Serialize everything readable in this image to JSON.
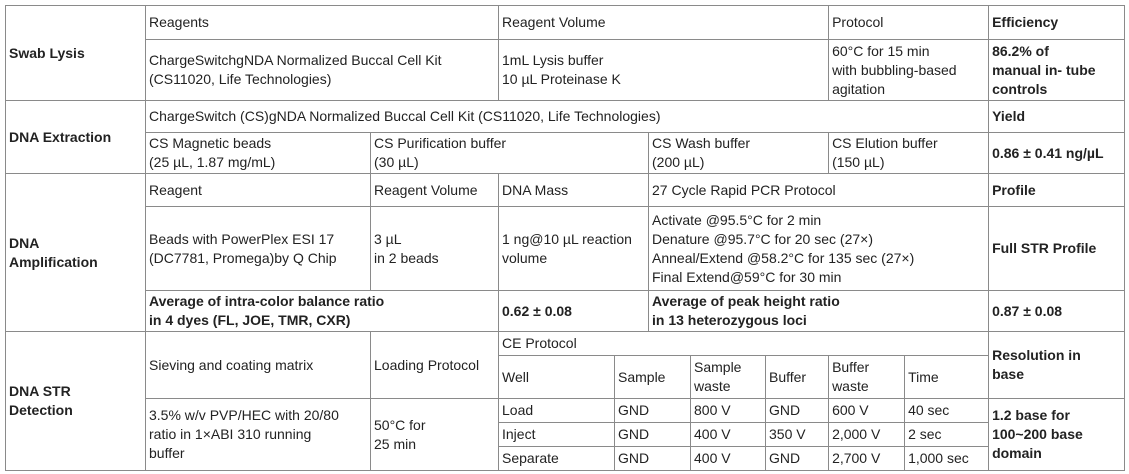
{
  "table": {
    "rows": [
      [
        "Swab Lysis",
        "Reagents",
        "Reagent Volume",
        "Protocol",
        "Efficiency"
      ],
      [
        "ChargeSwitchgNDA Normalized Buccal Cell Kit\n(CS11020, Life Technologies)",
        "1mL Lysis buffer\n10 µL Proteinase K",
        "60°C for 15 min\nwith bubbling-based\nagitation",
        "86.2% of\nmanual in- tube\ncontrols"
      ],
      [
        "DNA Extraction",
        "ChargeSwitch (CS)gNDA Normalized Buccal Cell Kit (CS11020, Life Technologies)",
        "Yield"
      ],
      [
        "CS Magnetic beads\n(25 µL, 1.87 mg/mL)",
        "CS Purification buffer\n(30 µL)",
        "CS Wash buffer\n(200 µL)",
        "CS Elution buffer\n(150 µL)",
        "0.86 ± 0.41 ng/µL"
      ],
      [
        "DNA\nAmplification",
        "Reagent",
        "Reagent Volume",
        "DNA Mass",
        "27 Cycle Rapid PCR Protocol",
        "Profile"
      ],
      [
        "Beads with PowerPlex ESI 17\n(DC7781, Promega)by Q Chip",
        "3 µL\n in 2 beads",
        "1 ng@10 µL reaction\nvolume",
        "Activate @95.5°C for 2 min\nDenature @95.7°C for 20 sec (27×)\nAnneal/Extend @58.2°C for 135 sec (27×)\nFinal Extend@59°C for 30 min",
        "Full STR Profile"
      ],
      [
        "Average of intra-color balance ratio\nin 4 dyes (FL, JOE, TMR, CXR)",
        "0.62 ± 0.08",
        "Average of peak height ratio\nin 13 heterozygous loci",
        "0.87 ± 0.08"
      ],
      [
        "DNA STR\nDetection",
        "Sieving and coating matrix",
        "Loading Protocol",
        "CE Protocol",
        "Resolution in\nbase"
      ],
      [
        "Well",
        "Sample",
        "Sample\nwaste",
        "Buffer",
        "Buffer\nwaste",
        "Time"
      ],
      [
        "3.5% w/v PVP/HEC with 20/80\nratio in 1×ABI 310 running\nbuffer",
        "50°C for\n25 min",
        "Load",
        "GND",
        "800 V",
        "GND",
        "600 V",
        "40 sec",
        "1.2 base for\n100~200 base\ndomain"
      ],
      [
        "Inject",
        "GND",
        "400 V",
        "350 V",
        "2,000 V",
        "2 sec"
      ],
      [
        "Separate",
        "GND",
        "400 V",
        "GND",
        "2,700 V",
        "1,000 sec"
      ]
    ]
  }
}
